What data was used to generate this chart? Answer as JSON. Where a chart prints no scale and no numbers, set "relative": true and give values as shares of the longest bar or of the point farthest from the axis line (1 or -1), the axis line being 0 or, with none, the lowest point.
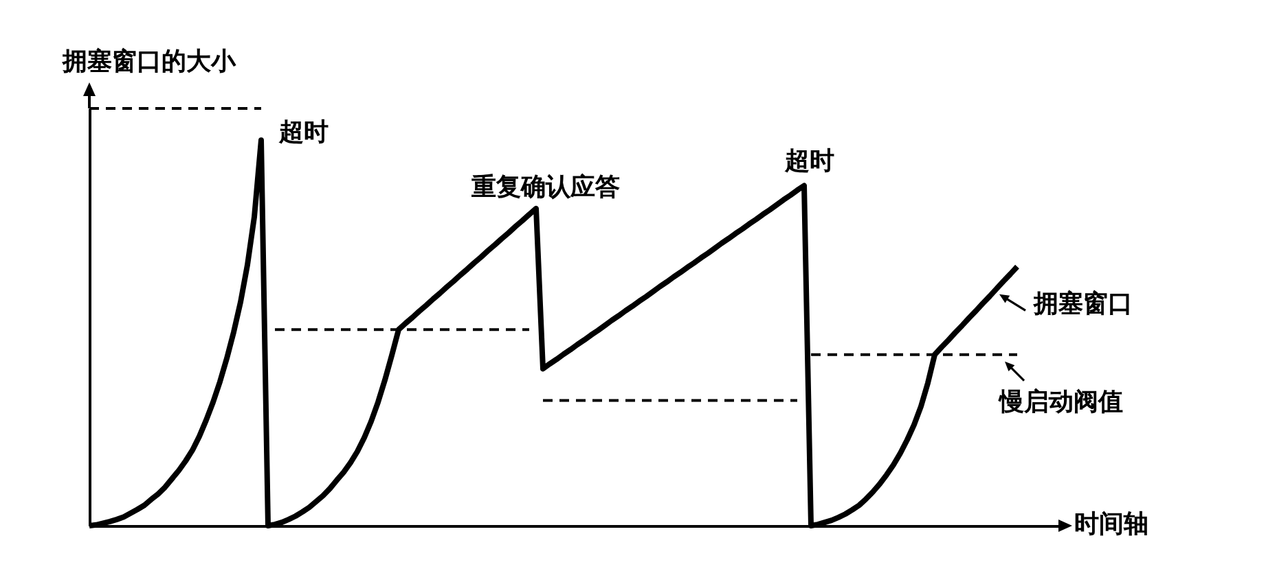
{
  "chart_data": {
    "type": "line",
    "ylabel": "拥塞窗口的大小",
    "xlabel": "时间轴",
    "relative": true,
    "line_style": "solid",
    "categories": [
      null,
      null,
      null,
      null,
      null,
      null,
      null,
      null,
      null,
      null,
      null,
      null,
      null,
      null,
      null,
      null,
      null,
      null,
      null,
      null,
      null,
      null,
      null,
      null,
      null,
      null,
      null,
      null,
      null,
      null,
      null,
      null,
      null,
      null,
      null,
      null,
      null,
      null,
      null,
      null,
      null,
      null,
      null,
      null,
      null,
      null,
      null,
      null,
      null,
      null,
      null,
      null,
      null,
      null,
      null,
      null,
      null,
      null,
      null,
      null,
      null,
      null,
      null,
      null,
      null,
      null,
      null,
      null,
      null,
      null,
      null,
      null,
      null,
      null,
      null,
      null,
      null,
      null,
      null,
      null,
      null,
      null,
      null,
      null,
      null,
      null,
      null,
      null,
      null,
      null,
      null,
      null,
      null,
      null,
      null,
      null,
      null,
      null,
      null,
      null,
      null,
      null,
      null,
      null,
      null,
      null,
      null,
      null,
      null,
      null,
      null,
      null,
      null,
      null,
      null,
      null,
      null,
      null,
      null,
      null,
      null,
      null,
      null,
      null,
      null,
      null,
      null,
      null,
      null,
      null,
      null,
      null,
      null,
      null,
      null,
      null,
      null,
      null,
      null,
      null,
      null,
      null,
      null
    ],
    "series": [
      {
        "name": "拥塞窗口",
        "color": "#000000",
        "values": [
          0,
          0.002,
          0.006,
          0.01,
          0.015,
          0.021,
          0.03,
          0.039,
          0.049,
          0.063,
          0.076,
          0.092,
          0.112,
          0.132,
          0.155,
          0.181,
          0.214,
          0.253,
          0.296,
          0.345,
          0.401,
          0.464,
          0.536,
          0.625,
          0.74,
          0.924,
          0,
          0.003,
          0.008,
          0.015,
          0.023,
          0.033,
          0.044,
          0.058,
          0.072,
          0.089,
          0.109,
          0.128,
          0.151,
          0.178,
          0.211,
          0.25,
          0.296,
          0.349,
          0.408,
          0.47,
          0.485,
          0.499,
          0.514,
          0.528,
          0.543,
          0.557,
          0.572,
          0.586,
          0.601,
          0.615,
          0.63,
          0.644,
          0.659,
          0.673,
          0.688,
          0.702,
          0.717,
          0.731,
          0.746,
          0.76,
          0.376,
          0.388,
          0.399,
          0.411,
          0.422,
          0.434,
          0.445,
          0.457,
          0.468,
          0.48,
          0.492,
          0.503,
          0.515,
          0.526,
          0.538,
          0.549,
          0.561,
          0.573,
          0.584,
          0.596,
          0.607,
          0.619,
          0.63,
          0.642,
          0.653,
          0.665,
          0.677,
          0.688,
          0.7,
          0.711,
          0.723,
          0.734,
          0.746,
          0.757,
          0.769,
          0.781,
          0.792,
          0.804,
          0.815,
          0,
          0.003,
          0.008,
          0.013,
          0.02,
          0.028,
          0.038,
          0.049,
          0.064,
          0.081,
          0.1,
          0.122,
          0.146,
          0.174,
          0.206,
          0.242,
          0.286,
          0.342,
          0.41,
          0.428,
          0.445,
          0.463,
          0.48,
          0.498,
          0.515,
          0.533,
          0.55,
          0.568,
          0.586,
          0.603,
          0.621,
          null,
          null,
          null,
          null,
          null,
          null,
          null
        ]
      },
      {
        "name": "慢启动阀值",
        "color": "#000000",
        "line_style": "dashed",
        "values": [
          1,
          1,
          1,
          1,
          1,
          1,
          1,
          1,
          1,
          1,
          1,
          1,
          1,
          1,
          1,
          1,
          1,
          1,
          1,
          1,
          1,
          1,
          1,
          1,
          1,
          1,
          null,
          0.47,
          0.47,
          0.47,
          0.47,
          0.47,
          0.47,
          0.47,
          0.47,
          0.47,
          0.47,
          0.47,
          0.47,
          0.47,
          0.47,
          0.47,
          0.47,
          0.47,
          0.47,
          0.47,
          0.47,
          0.47,
          0.47,
          0.47,
          0.47,
          0.47,
          0.47,
          0.47,
          0.47,
          0.47,
          0.47,
          0.47,
          0.47,
          0.47,
          0.47,
          0.47,
          0.47,
          0.47,
          0.47,
          null,
          0.3,
          0.3,
          0.3,
          0.3,
          0.3,
          0.3,
          0.3,
          0.3,
          0.3,
          0.3,
          0.3,
          0.3,
          0.3,
          0.3,
          0.3,
          0.3,
          0.3,
          0.3,
          0.3,
          0.3,
          0.3,
          0.3,
          0.3,
          0.3,
          0.3,
          0.3,
          0.3,
          0.3,
          0.3,
          0.3,
          0.3,
          0.3,
          0.3,
          0.3,
          0.3,
          0.3,
          0.3,
          0.3,
          null,
          0.41,
          0.41,
          0.41,
          0.41,
          0.41,
          0.41,
          0.41,
          0.41,
          0.41,
          0.41,
          0.41,
          0.41,
          0.41,
          0.41,
          0.41,
          0.41,
          0.41,
          0.41,
          0.41,
          0.41,
          0.41,
          0.41,
          0.41,
          0.41,
          0.41,
          0.41,
          0.41,
          0.41,
          0.41,
          0.41,
          0.41,
          null,
          null,
          null,
          null,
          null,
          null,
          null
        ]
      }
    ],
    "annotations": [
      "超时",
      {
        "text": "重复确认应答",
        "y": 0.76
      },
      {
        "text": "超时",
        "y": 0.815
      }
    ]
  }
}
